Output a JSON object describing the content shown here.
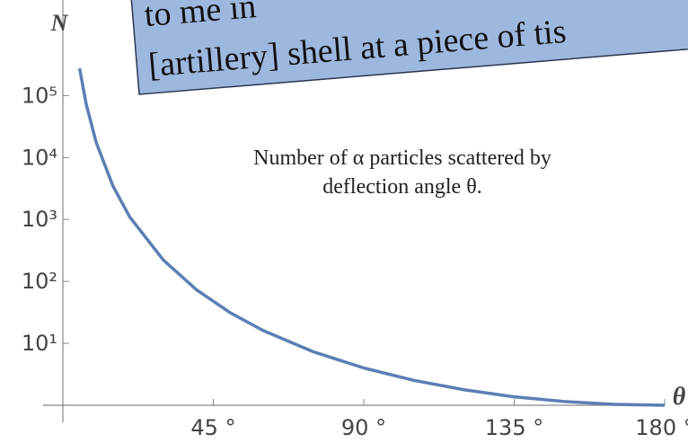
{
  "chart_data": {
    "type": "line",
    "quote": [
      "to me in",
      "[artillery] shell at a piece of tis"
    ],
    "annotation": [
      "Number of α particles scattered by",
      "deflection angle θ."
    ],
    "ylabel": "N",
    "xlabel": "θ",
    "log_y": true,
    "grid": false,
    "color": "#5b7fb5",
    "x": [
      5,
      7,
      10,
      15,
      20,
      30,
      40,
      50,
      60,
      75,
      90,
      105,
      120,
      135,
      150,
      165,
      180
    ],
    "values": [
      276000,
      72000,
      17300,
      3450,
      1100,
      223,
      73,
      31.3,
      16,
      7.28,
      4,
      2.52,
      1.78,
      1.37,
      1.15,
      1.035,
      1
    ],
    "xlim": [
      0,
      180
    ],
    "ylim": [
      1,
      3500000
    ],
    "xticks": [
      {
        "value": 45,
        "label": "45 °"
      },
      {
        "value": 90,
        "label": "90 °"
      },
      {
        "value": 135,
        "label": "135 °"
      },
      {
        "value": 180,
        "label": "180 °"
      }
    ],
    "yticks": [
      {
        "value": 10,
        "label": "10¹"
      },
      {
        "value": 100,
        "label": "10²"
      },
      {
        "value": 1000,
        "label": "10³"
      },
      {
        "value": 10000,
        "label": "10⁴"
      },
      {
        "value": 100000,
        "label": "10⁵"
      }
    ]
  }
}
